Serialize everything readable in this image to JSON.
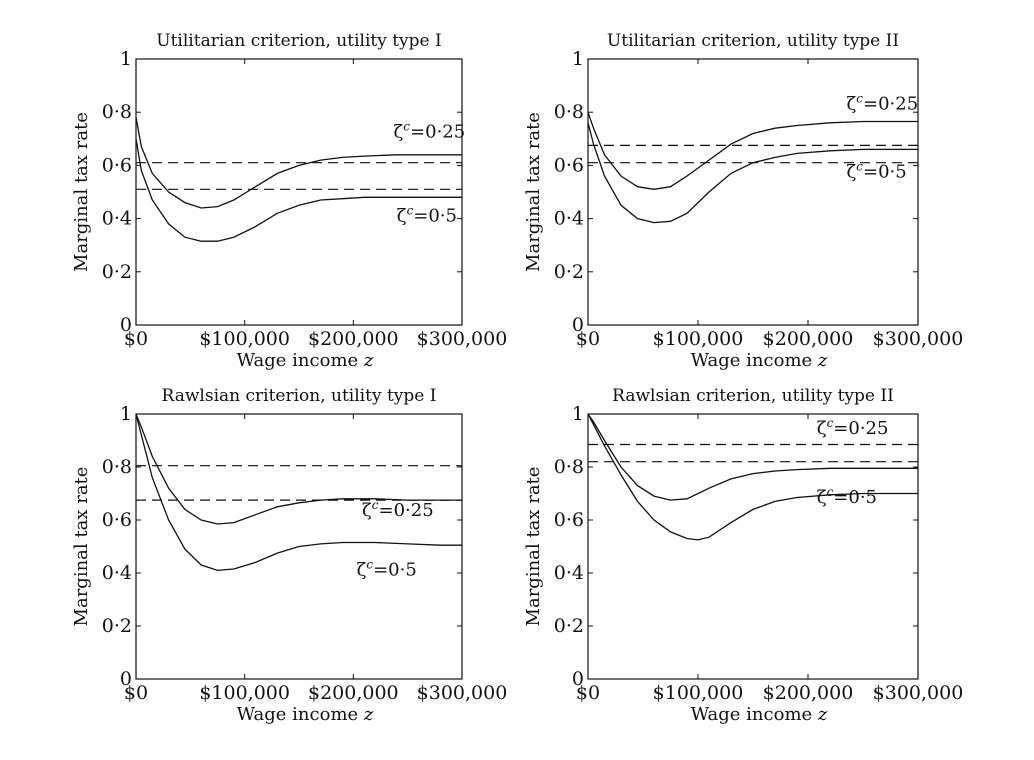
{
  "chart_data": [
    {
      "type": "line",
      "title": "Utilitarian criterion, utility type I",
      "xlabel": "Wage income z",
      "ylabel": "Marginal tax rate",
      "xlim": [
        0,
        300000
      ],
      "ylim": [
        0,
        1
      ],
      "x_ticks": [
        0,
        100000,
        200000,
        300000
      ],
      "x_tick_labels": [
        "$0",
        "$100,000",
        "$200,000",
        "$300,000"
      ],
      "y_ticks": [
        0,
        0.2,
        0.4,
        0.6,
        0.8,
        1
      ],
      "y_tick_labels": [
        "0",
        "0·2",
        "0·4",
        "0·6",
        "0·8",
        "1"
      ],
      "grid": false,
      "series": [
        {
          "label": "ζc=0·25",
          "style": "solid",
          "x": [
            0,
            5000,
            15000,
            30000,
            45000,
            60000,
            75000,
            90000,
            110000,
            130000,
            150000,
            170000,
            190000,
            210000,
            240000,
            270000,
            300000
          ],
          "y": [
            0.78,
            0.67,
            0.57,
            0.5,
            0.46,
            0.44,
            0.445,
            0.47,
            0.52,
            0.57,
            0.6,
            0.62,
            0.63,
            0.635,
            0.64,
            0.64,
            0.64
          ]
        },
        {
          "label": "ζc=0·5",
          "style": "solid",
          "x": [
            0,
            5000,
            15000,
            30000,
            45000,
            60000,
            75000,
            90000,
            110000,
            130000,
            150000,
            170000,
            190000,
            210000,
            240000,
            270000,
            300000
          ],
          "y": [
            0.7,
            0.58,
            0.47,
            0.38,
            0.33,
            0.315,
            0.315,
            0.33,
            0.37,
            0.42,
            0.45,
            0.47,
            0.475,
            0.48,
            0.48,
            0.48,
            0.48
          ]
        },
        {
          "label": "",
          "style": "dashed",
          "x": [
            0,
            300000
          ],
          "y": [
            0.61,
            0.61
          ]
        },
        {
          "label": "",
          "style": "dashed",
          "x": [
            0,
            300000
          ],
          "y": [
            0.51,
            0.51
          ]
        }
      ],
      "annotations": [
        {
          "text": "ζc=0·25",
          "x": 237000,
          "y": 0.705
        },
        {
          "text": "ζc=0·5",
          "x": 240000,
          "y": 0.39
        }
      ]
    },
    {
      "type": "line",
      "title": "Utilitarian criterion, utility type II",
      "xlabel": "Wage income z",
      "ylabel": "Marginal tax rate",
      "xlim": [
        0,
        300000
      ],
      "ylim": [
        0,
        1
      ],
      "x_ticks": [
        0,
        100000,
        200000,
        300000
      ],
      "x_tick_labels": [
        "$0",
        "$100,000",
        "$200,000",
        "$300,000"
      ],
      "y_ticks": [
        0,
        0.2,
        0.4,
        0.6,
        0.8,
        1
      ],
      "y_tick_labels": [
        "0",
        "0·2",
        "0·4",
        "0·6",
        "0·8",
        "1"
      ],
      "grid": false,
      "series": [
        {
          "label": "ζc=0·25",
          "style": "solid",
          "x": [
            0,
            5000,
            15000,
            30000,
            45000,
            60000,
            75000,
            90000,
            110000,
            130000,
            150000,
            170000,
            190000,
            220000,
            250000,
            280000,
            300000
          ],
          "y": [
            0.8,
            0.74,
            0.64,
            0.56,
            0.52,
            0.51,
            0.52,
            0.56,
            0.62,
            0.68,
            0.72,
            0.74,
            0.75,
            0.76,
            0.765,
            0.765,
            0.765
          ]
        },
        {
          "label": "ζc=0·5",
          "style": "solid",
          "x": [
            0,
            5000,
            15000,
            30000,
            45000,
            60000,
            75000,
            90000,
            110000,
            130000,
            150000,
            170000,
            190000,
            220000,
            250000,
            280000,
            300000
          ],
          "y": [
            0.76,
            0.68,
            0.56,
            0.45,
            0.4,
            0.385,
            0.39,
            0.42,
            0.5,
            0.57,
            0.61,
            0.63,
            0.645,
            0.655,
            0.66,
            0.66,
            0.66
          ]
        },
        {
          "label": "",
          "style": "dashed",
          "x": [
            0,
            300000
          ],
          "y": [
            0.675,
            0.675
          ]
        },
        {
          "label": "",
          "style": "dashed",
          "x": [
            0,
            300000
          ],
          "y": [
            0.61,
            0.61
          ]
        }
      ],
      "annotations": [
        {
          "text": "ζc=0·25",
          "x": 235000,
          "y": 0.81
        },
        {
          "text": "ζc=0·5",
          "x": 235000,
          "y": 0.555
        }
      ]
    },
    {
      "type": "line",
      "title": "Rawlsian criterion, utility type I",
      "xlabel": "Wage income z",
      "ylabel": "Marginal tax rate",
      "xlim": [
        0,
        300000
      ],
      "ylim": [
        0,
        1
      ],
      "x_ticks": [
        0,
        100000,
        200000,
        300000
      ],
      "x_tick_labels": [
        "$0",
        "$100,000",
        "$200,000",
        "$300,000"
      ],
      "y_ticks": [
        0,
        0.2,
        0.4,
        0.6,
        0.8,
        1
      ],
      "y_tick_labels": [
        "0",
        "0·2",
        "0·4",
        "0·6",
        "0·8",
        "1"
      ],
      "grid": false,
      "series": [
        {
          "label": "ζc=0·25",
          "style": "solid",
          "x": [
            0,
            5000,
            15000,
            30000,
            45000,
            60000,
            75000,
            90000,
            110000,
            130000,
            150000,
            170000,
            190000,
            220000,
            250000,
            280000,
            300000
          ],
          "y": [
            1.0,
            0.95,
            0.84,
            0.72,
            0.64,
            0.6,
            0.585,
            0.59,
            0.62,
            0.65,
            0.665,
            0.675,
            0.68,
            0.68,
            0.675,
            0.675,
            0.675
          ]
        },
        {
          "label": "ζc=0·5",
          "style": "solid",
          "x": [
            0,
            5000,
            15000,
            30000,
            45000,
            60000,
            75000,
            90000,
            110000,
            130000,
            150000,
            170000,
            190000,
            220000,
            250000,
            280000,
            300000
          ],
          "y": [
            1.0,
            0.92,
            0.76,
            0.6,
            0.49,
            0.43,
            0.41,
            0.415,
            0.44,
            0.475,
            0.5,
            0.51,
            0.515,
            0.515,
            0.51,
            0.505,
            0.505
          ]
        },
        {
          "label": "",
          "style": "dashed",
          "x": [
            0,
            300000
          ],
          "y": [
            0.805,
            0.805
          ]
        },
        {
          "label": "",
          "style": "dashed",
          "x": [
            0,
            300000
          ],
          "y": [
            0.675,
            0.675
          ]
        }
      ],
      "annotations": [
        {
          "text": "ζc=0·25",
          "x": 208000,
          "y": 0.615
        },
        {
          "text": "ζc=0·5",
          "x": 203000,
          "y": 0.39
        }
      ]
    },
    {
      "type": "line",
      "title": "Rawlsian criterion, utility type II",
      "xlabel": "Wage income z",
      "ylabel": "Marginal tax rate",
      "xlim": [
        0,
        300000
      ],
      "ylim": [
        0,
        1
      ],
      "x_ticks": [
        0,
        100000,
        200000,
        300000
      ],
      "x_tick_labels": [
        "$0",
        "$100,000",
        "$200,000",
        "$300,000"
      ],
      "y_ticks": [
        0,
        0.2,
        0.4,
        0.6,
        0.8,
        1
      ],
      "y_tick_labels": [
        "0",
        "0·2",
        "0·4",
        "0·6",
        "0·8",
        "1"
      ],
      "grid": false,
      "series": [
        {
          "label": "ζc=0·25",
          "style": "solid",
          "x": [
            0,
            5000,
            15000,
            30000,
            45000,
            60000,
            75000,
            90000,
            110000,
            130000,
            150000,
            170000,
            190000,
            220000,
            250000,
            280000,
            300000
          ],
          "y": [
            1.0,
            0.97,
            0.9,
            0.8,
            0.73,
            0.69,
            0.675,
            0.68,
            0.72,
            0.755,
            0.775,
            0.785,
            0.79,
            0.795,
            0.795,
            0.795,
            0.795
          ]
        },
        {
          "label": "ζc=0·5",
          "style": "solid",
          "x": [
            0,
            5000,
            15000,
            30000,
            45000,
            60000,
            75000,
            90000,
            100000,
            110000,
            130000,
            150000,
            170000,
            190000,
            220000,
            250000,
            300000
          ],
          "y": [
            1.0,
            0.96,
            0.88,
            0.77,
            0.67,
            0.6,
            0.555,
            0.53,
            0.525,
            0.535,
            0.59,
            0.64,
            0.67,
            0.685,
            0.695,
            0.7,
            0.7
          ]
        },
        {
          "label": "",
          "style": "dashed",
          "x": [
            0,
            300000
          ],
          "y": [
            0.885,
            0.885
          ]
        },
        {
          "label": "",
          "style": "dashed",
          "x": [
            0,
            300000
          ],
          "y": [
            0.82,
            0.82
          ]
        }
      ],
      "annotations": [
        {
          "text": "ζc=0·25",
          "x": 208000,
          "y": 0.925
        },
        {
          "text": "ζc=0·5",
          "x": 208000,
          "y": 0.665
        }
      ]
    }
  ]
}
